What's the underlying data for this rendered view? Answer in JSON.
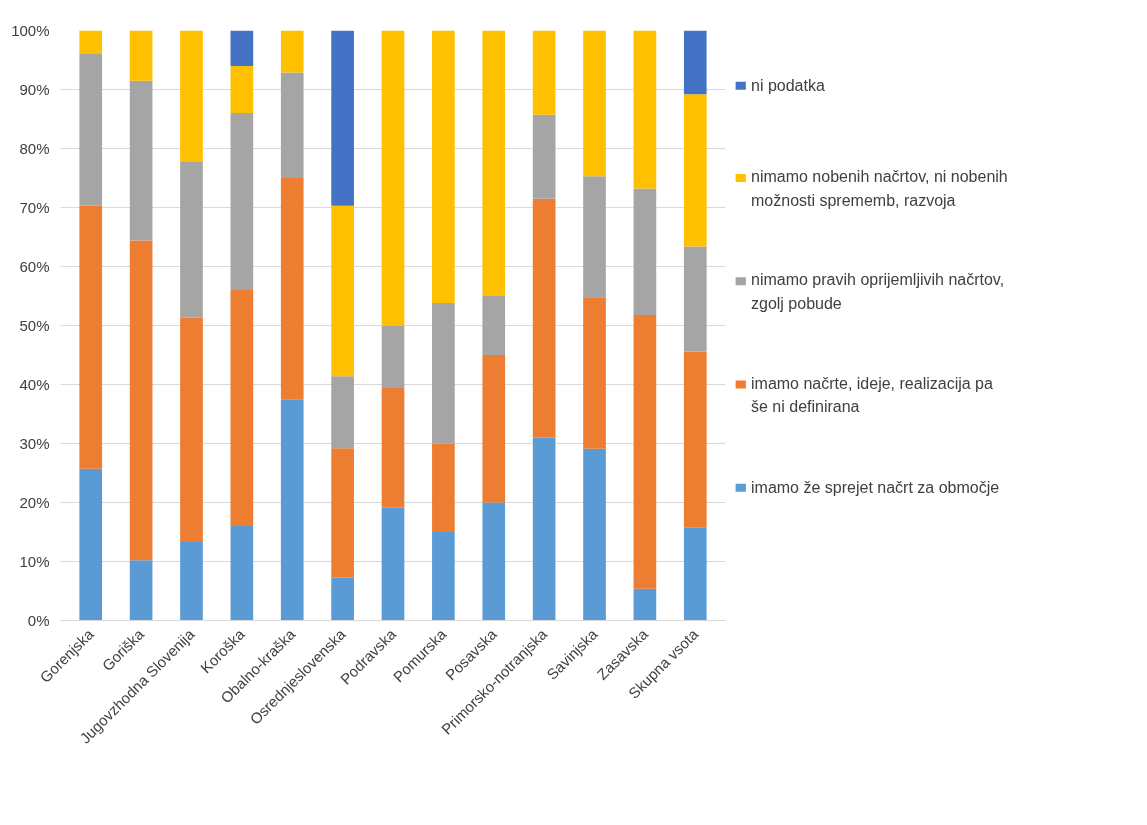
{
  "chart_data": {
    "type": "bar",
    "stacked": true,
    "categories": [
      "Gorenjska",
      "Goriška",
      "Jugovzhodna Slovenija",
      "Koroška",
      "Obalno-kraška",
      "Osrednjeslovenska",
      "Podravska",
      "Pomurska",
      "Posavska",
      "Primorsko-notranjska",
      "Savinjska",
      "Zasavska",
      "Skupna vsota"
    ],
    "series": [
      {
        "name": "imamo že  sprejet načrt za območje",
        "color": "#5b9bd5",
        "values": [
          25.7,
          10.2,
          13.3,
          16.0,
          37.5,
          7.3,
          19.1,
          15.0,
          20.0,
          31.0,
          29.1,
          5.4,
          15.8
        ]
      },
      {
        "name": "imamo načrte, ideje, realizacija pa še ni definirana",
        "color": "#ed7d31",
        "values": [
          44.6,
          54.2,
          38.0,
          40.0,
          37.5,
          21.9,
          20.3,
          15.0,
          25.0,
          40.5,
          25.7,
          46.4,
          29.8
        ]
      },
      {
        "name": "nimamo pravih oprijemljivih načrtov, zgolj pobude",
        "color": "#a5a5a5",
        "values": [
          25.7,
          27.1,
          26.4,
          30.0,
          17.9,
          12.2,
          10.6,
          23.8,
          10.0,
          14.2,
          20.5,
          21.4,
          17.8
        ]
      },
      {
        "name": "nimamo nobenih načrtov, ni nobenih možnosti sprememb, razvoja",
        "color": "#ffc000",
        "values": [
          4.0,
          8.5,
          22.3,
          8.0,
          7.1,
          28.9,
          50.0,
          46.2,
          45.0,
          14.3,
          24.7,
          26.8,
          25.8
        ]
      },
      {
        "name": "ni podatka",
        "color": "#4472c4",
        "values": [
          0,
          0,
          0,
          6.0,
          0,
          29.7,
          0,
          0,
          0,
          0,
          0,
          0,
          10.8
        ]
      }
    ],
    "ylim": [
      0,
      100
    ],
    "yticks": [
      {
        "value": 0,
        "label": "0%"
      },
      {
        "value": 10,
        "label": "10%"
      },
      {
        "value": 20,
        "label": "20%"
      },
      {
        "value": 30,
        "label": "30%"
      },
      {
        "value": 40,
        "label": "40%"
      },
      {
        "value": 50,
        "label": "50%"
      },
      {
        "value": 60,
        "label": "60%"
      },
      {
        "value": 70,
        "label": "70%"
      },
      {
        "value": 80,
        "label": "80%"
      },
      {
        "value": 90,
        "label": "90%"
      },
      {
        "value": 100,
        "label": "100%"
      }
    ],
    "grid": "y",
    "legend": "right"
  }
}
